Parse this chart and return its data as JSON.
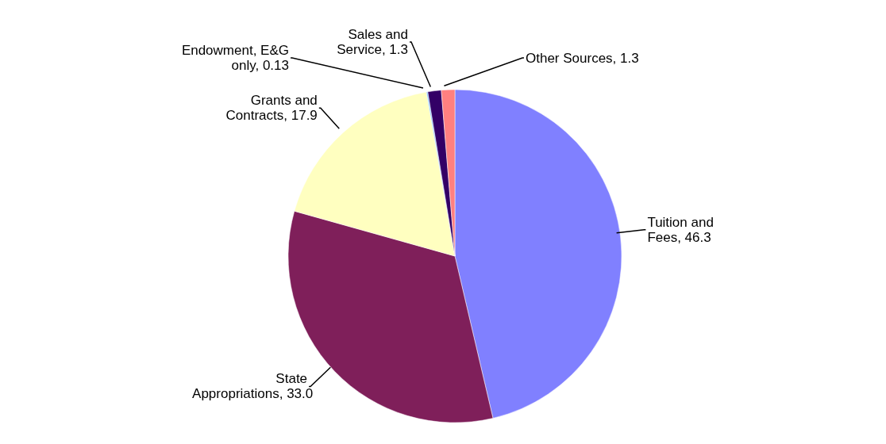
{
  "chart_data": {
    "type": "pie",
    "categories": [
      "Tuition and Fees",
      "State Appropriations",
      "Grants and Contracts",
      "Endowment, E&G only",
      "Sales and Service",
      "Other Sources"
    ],
    "values": [
      46.3,
      33.0,
      17.9,
      0.13,
      1.3,
      1.3
    ],
    "value_labels": [
      "46.3",
      "33.0",
      "17.9",
      "0.13",
      "1.3",
      "1.3"
    ],
    "colors": [
      "#8080ff",
      "#7f1f5a",
      "#ffffc0",
      "#80c0ff",
      "#330066",
      "#ff8080"
    ],
    "legend": false
  }
}
